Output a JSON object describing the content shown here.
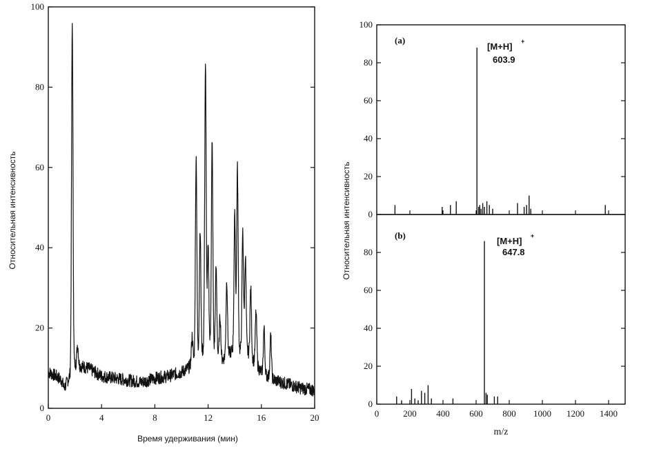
{
  "chart_data": [
    {
      "type": "line",
      "xlabel": "Время удерживания (мин)",
      "ylabel": "Относительная интенсивность",
      "xlim": [
        0,
        20
      ],
      "ylim": [
        0,
        100
      ],
      "xticks": [
        0,
        4,
        8,
        12,
        16,
        20
      ],
      "yticks": [
        0,
        20,
        40,
        60,
        80,
        100
      ],
      "baseline": [
        [
          0,
          9
        ],
        [
          0.6,
          8
        ],
        [
          1.0,
          7
        ],
        [
          1.2,
          5
        ],
        [
          2.0,
          11
        ],
        [
          3.0,
          10
        ],
        [
          4.0,
          8
        ],
        [
          5.0,
          7.5
        ],
        [
          6.0,
          7
        ],
        [
          7.0,
          6.5
        ],
        [
          8.0,
          7.5
        ],
        [
          9.0,
          8
        ],
        [
          10.0,
          9
        ],
        [
          10.5,
          10
        ],
        [
          11.0,
          12
        ],
        [
          12.0,
          16
        ],
        [
          13.0,
          12
        ],
        [
          14.0,
          15
        ],
        [
          15.0,
          14
        ],
        [
          16.0,
          9
        ],
        [
          17.0,
          7
        ],
        [
          18.0,
          6
        ],
        [
          19.0,
          5
        ],
        [
          20.0,
          4.5
        ]
      ],
      "peaks": [
        {
          "x": 1.8,
          "y": 96
        },
        {
          "x": 2.2,
          "y": 16
        },
        {
          "x": 10.8,
          "y": 18
        },
        {
          "x": 11.1,
          "y": 63
        },
        {
          "x": 11.4,
          "y": 45
        },
        {
          "x": 11.8,
          "y": 86
        },
        {
          "x": 12.0,
          "y": 40
        },
        {
          "x": 12.3,
          "y": 66
        },
        {
          "x": 12.6,
          "y": 35
        },
        {
          "x": 12.9,
          "y": 23
        },
        {
          "x": 13.4,
          "y": 32
        },
        {
          "x": 14.0,
          "y": 48
        },
        {
          "x": 14.2,
          "y": 60
        },
        {
          "x": 14.6,
          "y": 44
        },
        {
          "x": 14.8,
          "y": 38
        },
        {
          "x": 15.2,
          "y": 30
        },
        {
          "x": 15.6,
          "y": 24
        },
        {
          "x": 16.2,
          "y": 20
        },
        {
          "x": 16.7,
          "y": 18
        }
      ]
    },
    {
      "type": "bar",
      "panel": "(a)",
      "ylabel": "Относительная интенсивность",
      "xlim": [
        0,
        1500
      ],
      "ylim": [
        0,
        100
      ],
      "yticks": [
        0,
        20,
        40,
        60,
        80,
        100
      ],
      "annotation_line1": "[M+H]",
      "annotation_sup": "+",
      "annotation_line2": "603.9",
      "x": [
        110,
        395,
        445,
        480,
        605,
        615,
        622,
        630,
        640,
        650,
        665,
        680,
        700,
        850,
        890,
        905,
        920,
        930,
        1380
      ],
      "values": [
        5,
        4,
        5,
        7,
        88,
        4,
        5,
        3,
        6,
        4,
        7,
        5,
        3,
        6,
        4,
        5,
        10,
        3,
        5
      ]
    },
    {
      "type": "bar",
      "panel": "(b)",
      "xlabel": "m/z",
      "xlim": [
        0,
        1500
      ],
      "ylim": [
        0,
        100
      ],
      "xticks": [
        0,
        200,
        400,
        600,
        800,
        1000,
        1200,
        1400
      ],
      "yticks": [
        0,
        20,
        40,
        60,
        80
      ],
      "annotation_line1": "[M+H]",
      "annotation_sup": "+",
      "annotation_line2": "647.8",
      "x": [
        120,
        150,
        210,
        230,
        250,
        270,
        290,
        310,
        330,
        460,
        650,
        660,
        668,
        710,
        730
      ],
      "values": [
        4,
        2,
        8,
        3,
        2,
        7,
        6,
        10,
        3,
        3,
        86,
        6,
        5,
        4,
        4
      ]
    }
  ]
}
